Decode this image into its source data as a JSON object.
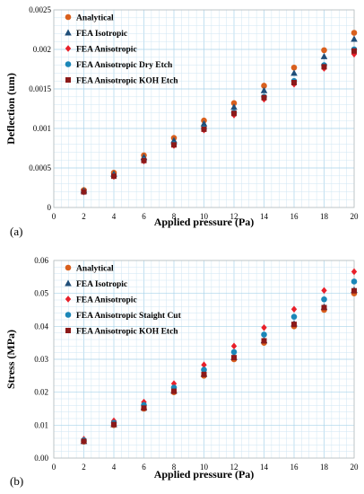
{
  "chart_data": [
    {
      "type": "scatter",
      "panel_label": "(a)",
      "xlabel": "Applied pressure (Pa)",
      "ylabel": "Deflection (um)",
      "xlim": [
        0,
        20
      ],
      "ylim": [
        0,
        0.0025
      ],
      "x_ticks": [
        "0",
        "2",
        "4",
        "6",
        "8",
        "10",
        "12",
        "14",
        "16",
        "18",
        "20"
      ],
      "y_ticks": [
        "0",
        "0.0005",
        "0.001",
        "0.0015",
        "0.002",
        "0.0025"
      ],
      "y_tick_values": [
        0,
        0.0005,
        0.001,
        0.0015,
        0.002,
        0.0025
      ],
      "grid": true,
      "legend_position": "top-left",
      "x": [
        2,
        4,
        6,
        8,
        10,
        12,
        14,
        16,
        18,
        20
      ],
      "series": [
        {
          "name": "Analytical",
          "marker": "circle",
          "color": "#d9601e",
          "values": [
            0.00022,
            0.00044,
            0.00066,
            0.00088,
            0.0011,
            0.00132,
            0.00154,
            0.00177,
            0.00199,
            0.00221
          ]
        },
        {
          "name": "FEA Isotropic",
          "marker": "triangle",
          "color": "#1f4e79",
          "values": [
            0.000212,
            0.000424,
            0.000636,
            0.000848,
            0.00106,
            0.00127,
            0.00148,
            0.0017,
            0.00191,
            0.00213
          ]
        },
        {
          "name": "FEA Anisotropic",
          "marker": "diamond",
          "color": "#e8202a",
          "values": [
            0.000196,
            0.000392,
            0.000588,
            0.000784,
            0.00098,
            0.00117,
            0.00137,
            0.00156,
            0.00176,
            0.00194
          ]
        },
        {
          "name": "FEA Anisotropic Dry Etch",
          "marker": "circle",
          "color": "#1b87b8",
          "values": [
            0.0002,
            0.0004,
            0.0006,
            0.0008,
            0.001,
            0.0012,
            0.0014,
            0.0016,
            0.0018,
            0.002
          ]
        },
        {
          "name": "FEA Anisotropic KOH Etch",
          "marker": "square",
          "color": "#8b1a1a",
          "values": [
            0.000198,
            0.000396,
            0.000594,
            0.000792,
            0.00099,
            0.00119,
            0.00139,
            0.00158,
            0.00178,
            0.00198
          ]
        }
      ]
    },
    {
      "type": "scatter",
      "panel_label": "(b)",
      "xlabel": "Applied pressure (Pa)",
      "ylabel": "Stress (MPa)",
      "xlim": [
        0,
        20
      ],
      "ylim": [
        0,
        0.06
      ],
      "x_ticks": [
        "0",
        "2",
        "4",
        "6",
        "8",
        "10",
        "12",
        "14",
        "16",
        "18",
        "20"
      ],
      "y_ticks": [
        "0.00",
        "0.01",
        "0.02",
        "0.03",
        "0.04",
        "0.05",
        "0.06"
      ],
      "y_tick_values": [
        0,
        0.01,
        0.02,
        0.03,
        0.04,
        0.05,
        0.06
      ],
      "grid": true,
      "legend_position": "top-left",
      "x": [
        2,
        4,
        6,
        8,
        10,
        12,
        14,
        16,
        18,
        20
      ],
      "series": [
        {
          "name": "Analytical",
          "marker": "circle",
          "color": "#d9601e",
          "values": [
            0.005,
            0.01,
            0.015,
            0.02,
            0.025,
            0.03,
            0.035,
            0.04,
            0.045,
            0.05
          ]
        },
        {
          "name": "FEA Isotropic",
          "marker": "triangle",
          "color": "#1f4e79",
          "values": [
            0.0051,
            0.0102,
            0.0153,
            0.0204,
            0.0255,
            0.0306,
            0.0357,
            0.0408,
            0.0459,
            0.051
          ]
        },
        {
          "name": "FEA Anisotropic",
          "marker": "diamond",
          "color": "#e8202a",
          "values": [
            0.0057,
            0.0113,
            0.017,
            0.0226,
            0.0283,
            0.034,
            0.0396,
            0.0452,
            0.0509,
            0.0566
          ]
        },
        {
          "name": "FEA Anisotropic Staight Cut",
          "marker": "circle",
          "color": "#1b87b8",
          "values": [
            0.0054,
            0.0107,
            0.0161,
            0.0214,
            0.0268,
            0.0322,
            0.0375,
            0.0429,
            0.0482,
            0.0536
          ]
        },
        {
          "name": "FEA Anisotropic KOH Etch",
          "marker": "square",
          "color": "#8b1a1a",
          "values": [
            0.0051,
            0.0102,
            0.0152,
            0.0203,
            0.0254,
            0.0305,
            0.0356,
            0.0406,
            0.0457,
            0.0508
          ]
        }
      ]
    }
  ]
}
